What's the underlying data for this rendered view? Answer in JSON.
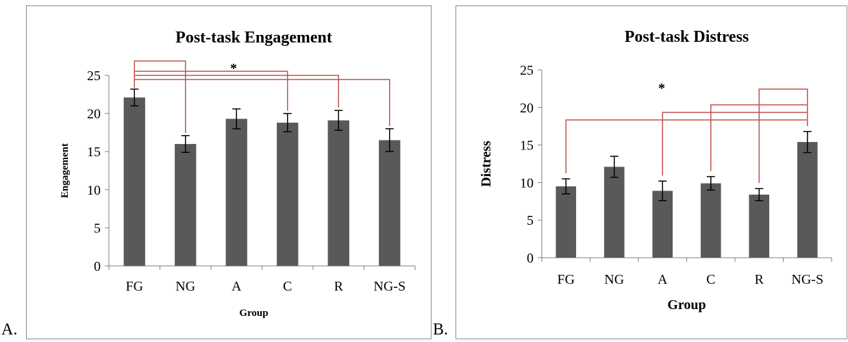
{
  "panels": {
    "a_label": "A.",
    "b_label": "B."
  },
  "chart_data": [
    {
      "type": "bar",
      "title": "Post-task Engagement",
      "xlabel": "Group",
      "ylabel": "Engagement",
      "categories": [
        "FG",
        "NG",
        "A",
        "C",
        "R",
        "NG-S"
      ],
      "values": [
        22.1,
        16.0,
        19.3,
        18.8,
        19.1,
        16.5
      ],
      "error": [
        1.1,
        1.1,
        1.3,
        1.2,
        1.3,
        1.5
      ],
      "ylim": [
        0,
        25
      ],
      "yticks": [
        0,
        5,
        10,
        15,
        20,
        25
      ],
      "bar_color": "#595959",
      "bracket_color": "#c0504d",
      "grid": false,
      "significance_marker": "*",
      "comparisons": [
        {
          "from": "FG",
          "to": "NG"
        },
        {
          "from": "FG",
          "to": "C"
        },
        {
          "from": "FG",
          "to": "R"
        },
        {
          "from": "FG",
          "to": "NG-S"
        }
      ]
    },
    {
      "type": "bar",
      "title": "Post-task Distress",
      "xlabel": "Group",
      "ylabel": "Distress",
      "categories": [
        "FG",
        "NG",
        "A",
        "C",
        "R",
        "NG-S"
      ],
      "values": [
        9.5,
        12.1,
        8.9,
        9.9,
        8.4,
        15.4
      ],
      "error": [
        1.0,
        1.4,
        1.3,
        0.9,
        0.8,
        1.4
      ],
      "ylim": [
        0,
        25
      ],
      "yticks": [
        0,
        5,
        10,
        15,
        20,
        25
      ],
      "bar_color": "#595959",
      "bracket_color": "#c0504d",
      "grid": false,
      "significance_marker": "*",
      "comparisons": [
        {
          "from": "FG",
          "to": "NG-S"
        },
        {
          "from": "A",
          "to": "NG-S"
        },
        {
          "from": "C",
          "to": "NG-S"
        },
        {
          "from": "R",
          "to": "NG-S"
        }
      ]
    }
  ]
}
